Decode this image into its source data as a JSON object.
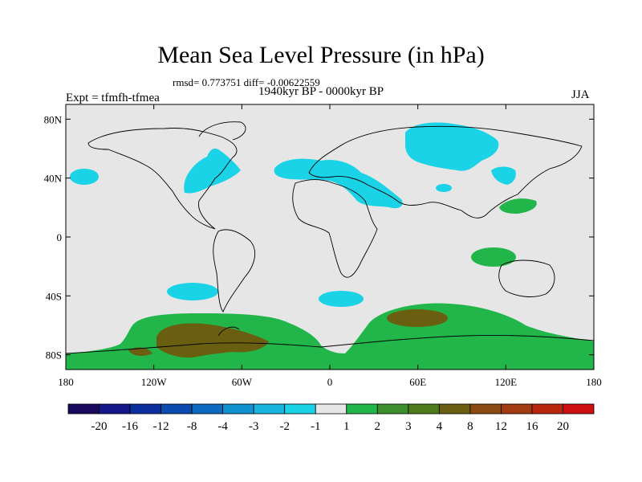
{
  "title": "Mean Sea Level Pressure (in hPa)",
  "stats": "rmsd= 0.773751 diff= -0.00622559",
  "period": "1940kyr BP - 0000kyr BP",
  "experiment": "Expt = tfmfh-tfmea",
  "season": "JJA",
  "lat_labels": [
    "80N",
    "40N",
    "0",
    "40S",
    "80S"
  ],
  "lon_labels": [
    "180",
    "120W",
    "60W",
    "0",
    "60E",
    "120E",
    "180"
  ],
  "colorbar": {
    "labels": [
      "-20",
      "-16",
      "-12",
      "-8",
      "-4",
      "-3",
      "-2",
      "-1",
      "1",
      "2",
      "3",
      "4",
      "8",
      "12",
      "16",
      "20"
    ],
    "colors": [
      "#1a0a5e",
      "#14168a",
      "#0c2fa0",
      "#0a4bb0",
      "#0a6ac0",
      "#1092cf",
      "#17b4df",
      "#1ad3e6",
      "#e6e6e6",
      "#22b64a",
      "#3d8f2d",
      "#4f7a1a",
      "#6a5e10",
      "#8a4a12",
      "#a23a12",
      "#b8260e",
      "#cc1010"
    ]
  },
  "colors": {
    "background": "#e6e6e6",
    "negative_anomaly": "#1ad3e6",
    "positive_anomaly_1": "#22b64a",
    "positive_anomaly_2": "#3d8f2d",
    "positive_anomaly_3": "#6a5e10"
  }
}
